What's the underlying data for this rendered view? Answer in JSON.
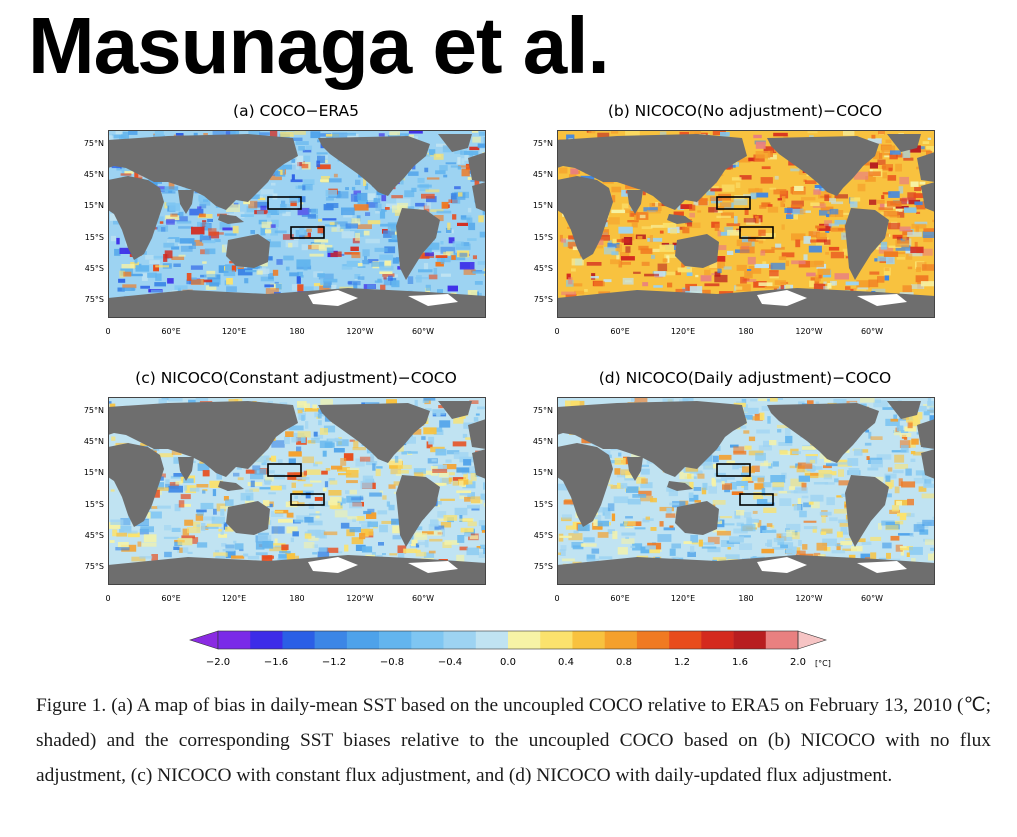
{
  "author": "Masunaga et al.",
  "panels": [
    {
      "title": "(a) COCO−ERA5",
      "scheme": "cool"
    },
    {
      "title": "(b) NICOCO(No adjustment)−COCO",
      "scheme": "warm"
    },
    {
      "title": "(c) NICOCO(Constant adjustment)−COCO",
      "scheme": "mild"
    },
    {
      "title": "(d) NICOCO(Daily adjustment)−COCO",
      "scheme": "mild2"
    }
  ],
  "lat_labels": [
    "75°N",
    "45°N",
    "15°N",
    "15°S",
    "45°S",
    "75°S"
  ],
  "lon_labels": [
    "0",
    "60°E",
    "120°E",
    "180",
    "120°W",
    "60°W"
  ],
  "colorbar": {
    "ticks": [
      "−2.0",
      "−1.6",
      "−1.2",
      "−0.8",
      "−0.4",
      "0.0",
      "0.4",
      "0.8",
      "1.2",
      "1.6",
      "2.0"
    ],
    "unit": "[°C]",
    "colors": [
      "#7a2be8",
      "#3d2ce8",
      "#2b5fe6",
      "#3c86e6",
      "#4ea2ea",
      "#63b5ee",
      "#7fc6f2",
      "#9dd3f2",
      "#c0e3f2",
      "#f6f3a6",
      "#fbe26d",
      "#f8c23f",
      "#f5a02c",
      "#f07a22",
      "#e84c1c",
      "#d42a1e",
      "#b81e20",
      "#e98080"
    ],
    "min_color": "#8a2be2",
    "max_color": "#f6c4c4"
  },
  "caption": "Figure 1. (a) A map of bias in daily-mean SST based on the uncoupled COCO relative to ERA5 on February 13, 2010 (℃; shaded) and the corresponding SST biases relative to the uncoupled COCO based on (b) NICOCO with no flux adjustment, (c) NICOCO with constant flux adjustment, and (d) NICOCO with daily-updated flux adjustment."
}
